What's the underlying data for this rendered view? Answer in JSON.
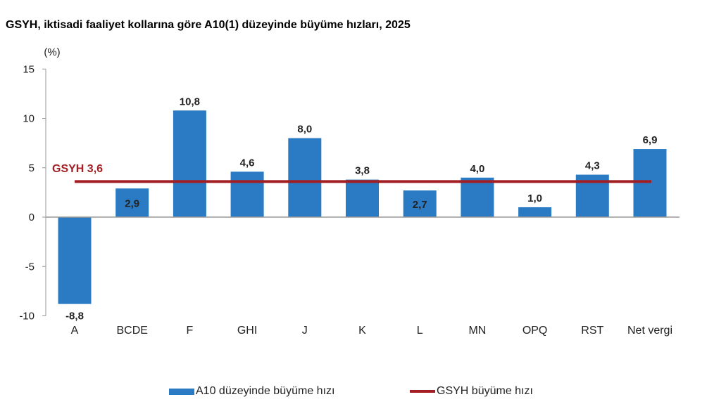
{
  "title": "GSYH, iktisadi faaliyet kollarına göre A10(1) düzeyinde büyüme hızları, 2025",
  "y_unit": "(%)",
  "colors": {
    "bar": "#2a7bc4",
    "line": "#a31e22",
    "axis": "#999999"
  },
  "legend": {
    "bar_label": "A10 düzeyinde büyüme hızı",
    "line_label": "GSYH büyüme hızı"
  },
  "gsyh_label": "GSYH 3,6",
  "chart_data": {
    "type": "bar",
    "title": "GSYH, iktisadi faaliyet kollarına göre A10(1) düzeyinde büyüme hızları, 2025",
    "xlabel": "",
    "ylabel": "(%)",
    "ylim": [
      -10,
      15
    ],
    "yticks": [
      15,
      10,
      5,
      0,
      -5,
      -10
    ],
    "grid": false,
    "legend_position": "bottom",
    "categories": [
      "A",
      "BCDE",
      "F",
      "GHI",
      "J",
      "K",
      "L",
      "MN",
      "OPQ",
      "RST",
      "Net vergi"
    ],
    "series": [
      {
        "name": "A10 düzeyinde büyüme hızı",
        "type": "bar",
        "values": [
          -8.8,
          2.9,
          10.8,
          4.6,
          8.0,
          3.8,
          2.7,
          4.0,
          1.0,
          4.3,
          6.9
        ],
        "labels": [
          "-8,8",
          "2,9",
          "10,8",
          "4,6",
          "8,0",
          "3,8",
          "2,7",
          "4,0",
          "1,0",
          "4,3",
          "6,9"
        ]
      },
      {
        "name": "GSYH büyüme hızı",
        "type": "line",
        "value": 3.6,
        "annotation": "GSYH 3,6"
      }
    ]
  }
}
